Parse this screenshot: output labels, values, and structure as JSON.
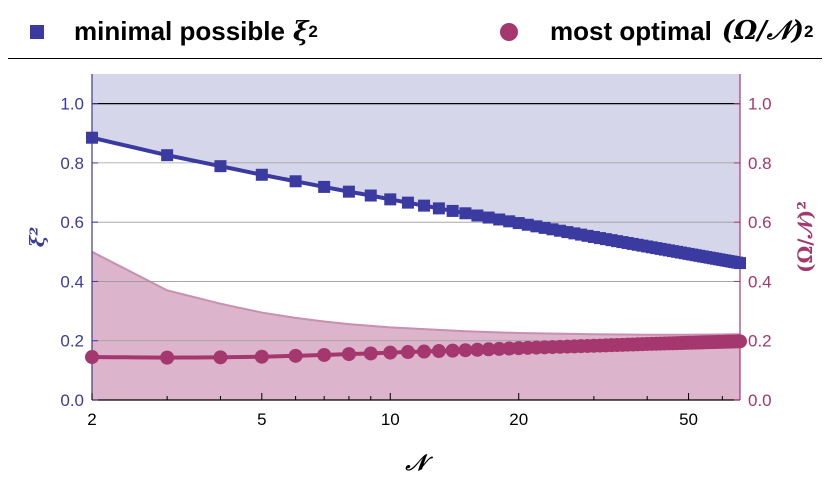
{
  "legend": {
    "items": [
      {
        "marker": "square",
        "color": "#3b3aa0",
        "text": "minimal possible",
        "math": "ξ",
        "sup": "2"
      },
      {
        "marker": "circle",
        "color": "#a5376f",
        "text": "most optimal",
        "math": "(Ω/𝒩)",
        "sup": "2"
      }
    ]
  },
  "chart_data": {
    "type": "scatter",
    "title": "",
    "xlabel": "𝒩",
    "ylabel_left": "ξ²",
    "ylabel_right": "(Ω/𝒩)²",
    "x_scale": "log",
    "xlim": [
      2,
      66
    ],
    "ylim": [
      0,
      1.1
    ],
    "x_ticks": [
      2,
      5,
      10,
      20,
      50
    ],
    "y_ticks": [
      0.0,
      0.2,
      0.4,
      0.6,
      0.8,
      1.0
    ],
    "y_tick_labels": [
      "0.0",
      "0.2",
      "0.4",
      "0.6",
      "0.8",
      "1.0"
    ],
    "reference_line_y": 1.0,
    "colors": {
      "xi": "#3b3aa0",
      "omega": "#a5376f",
      "xi_fill": "#d6d6ea",
      "omega_fill": "#dcb5cc",
      "left_axis": "#3b3aa0",
      "right_axis": "#a5376f"
    },
    "series": [
      {
        "name": "minimal possible ξ²",
        "marker": "square",
        "x": [
          2,
          3,
          4,
          5,
          6,
          7,
          8,
          9,
          10,
          15,
          20,
          30,
          40,
          50,
          66
        ],
        "y": [
          0.885,
          0.826,
          0.789,
          0.76,
          0.738,
          0.719,
          0.703,
          0.69,
          0.677,
          0.63,
          0.597,
          0.55,
          0.518,
          0.493,
          0.462
        ]
      },
      {
        "name": "most optimal (Ω/𝒩)²",
        "marker": "circle",
        "x": [
          2,
          3,
          4,
          5,
          6,
          7,
          8,
          9,
          10,
          15,
          20,
          30,
          40,
          50,
          66
        ],
        "y": [
          0.145,
          0.143,
          0.144,
          0.146,
          0.149,
          0.152,
          0.155,
          0.157,
          0.16,
          0.168,
          0.175,
          0.183,
          0.189,
          0.193,
          0.198
        ]
      }
    ],
    "bands": [
      {
        "name": "xi_region",
        "x": [
          2,
          66
        ],
        "lower": [
          0.885,
          0.462
        ],
        "upper": [
          1.1,
          1.1
        ]
      },
      {
        "name": "omega_region",
        "x": [
          2,
          3,
          4,
          5,
          6,
          7,
          8,
          10,
          15,
          20,
          30,
          40,
          50,
          66
        ],
        "lower": [
          0,
          0,
          0,
          0,
          0,
          0,
          0,
          0,
          0,
          0,
          0,
          0,
          0,
          0
        ],
        "upper": [
          0.5,
          0.37,
          0.325,
          0.295,
          0.277,
          0.265,
          0.256,
          0.245,
          0.232,
          0.226,
          0.222,
          0.22,
          0.22,
          0.222
        ]
      }
    ]
  }
}
